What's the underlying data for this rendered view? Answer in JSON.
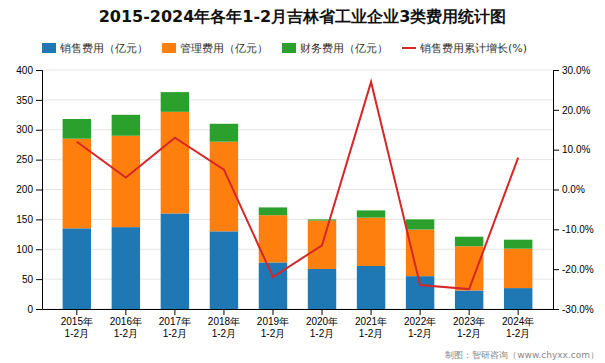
{
  "chart_data": {
    "type": "bar",
    "title": "2015-2024年各年1-2月吉林省工业企业3类费用统计图",
    "categories": [
      "2015年\n1-2月",
      "2016年\n1-2月",
      "2017年\n1-2月",
      "2018年\n1-2月",
      "2019年\n1-2月",
      "2020年\n1-2月",
      "2021年\n1-2月",
      "2022年\n1-2月",
      "2023年\n1-2月",
      "2024年\n1-2月"
    ],
    "series": [
      {
        "name": "销售费用（亿元）",
        "values": [
          135,
          137,
          160,
          130,
          78,
          67,
          72,
          55,
          31,
          35
        ]
      },
      {
        "name": "管理费用（亿元）",
        "values": [
          150,
          153,
          170,
          150,
          79,
          81,
          81,
          78,
          74,
          66
        ]
      },
      {
        "name": "财务费用（亿元）",
        "values": [
          33,
          35,
          33,
          30,
          13,
          2,
          12,
          17,
          16,
          15
        ]
      },
      {
        "name": "销售费用累计增长(%)",
        "type": "line",
        "axis": "y2",
        "values": [
          12.0,
          3.0,
          13.0,
          5.0,
          -22.0,
          -14.0,
          27.0,
          -24.0,
          -25.0,
          8.0
        ]
      }
    ],
    "stacked": true,
    "ylim": [
      0,
      400
    ],
    "yticks": [
      0,
      50,
      100,
      150,
      200,
      250,
      300,
      350,
      400
    ],
    "y2lim": [
      -30,
      30
    ],
    "y2ticks": [
      {
        "value": -30,
        "label": "-30.0%"
      },
      {
        "value": -20,
        "label": "-20.0%"
      },
      {
        "value": -10,
        "label": "-10.0%"
      },
      {
        "value": 0,
        "label": "0.0%"
      },
      {
        "value": 10,
        "label": "10.0%"
      },
      {
        "value": 20,
        "label": "20.0%"
      },
      {
        "value": 30,
        "label": "30.0%"
      }
    ],
    "grid": true,
    "legend": "upper left",
    "annotations": [
      "制图：智研咨询（www.chyxx.com）"
    ]
  }
}
